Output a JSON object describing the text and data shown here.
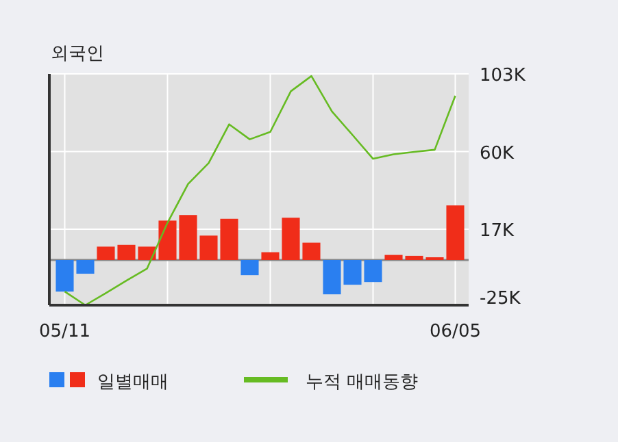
{
  "chart_data": {
    "type": "bar",
    "title": "외국인",
    "categories": [
      "05/11",
      null,
      null,
      null,
      null,
      null,
      null,
      null,
      null,
      null,
      null,
      null,
      null,
      null,
      null,
      null,
      null,
      null,
      null,
      "06/05"
    ],
    "series": [
      {
        "name": "일별매매",
        "colors": [
          "#2a7ff0",
          "#2a7ff0",
          "#f02d19",
          "#f02d19",
          "#f02d19",
          "#f02d19",
          "#f02d19",
          "#f02d19",
          "#f02d19",
          "#2a7ff0",
          "#f02d19",
          "#f02d19",
          "#f02d19",
          "#2a7ff0",
          "#2a7ff0",
          "#2a7ff0",
          "#f02d19",
          "#f02d19",
          "#f02d19",
          "#f02d19"
        ],
        "values": [
          -17.5,
          -7.6,
          7.4,
          8.4,
          7.4,
          21.8,
          24.9,
          13.5,
          22.8,
          -8.4,
          4.3,
          23.4,
          9.6,
          -19,
          -13.7,
          -12.2,
          2.8,
          2.3,
          1.5,
          30.2
        ]
      },
      {
        "name": "누적 매매동향",
        "type": "line",
        "color": "#66bb22",
        "values": [
          -17.5,
          -25,
          -18.3,
          -11.4,
          -4.8,
          20.6,
          42.1,
          53.6,
          75.1,
          66.8,
          70.9,
          93.4,
          101.8,
          82.2,
          69.2,
          56,
          58.5,
          59.8,
          61,
          90.9
        ]
      }
    ],
    "ylim": [
      -25,
      103
    ],
    "yticks": [
      {
        "value": 103,
        "label": "103K"
      },
      {
        "value": 60,
        "label": "60K"
      },
      {
        "value": 17,
        "label": "17K"
      },
      {
        "value": -25,
        "label": "-25K"
      }
    ],
    "grid": true,
    "legend": "bottom"
  }
}
